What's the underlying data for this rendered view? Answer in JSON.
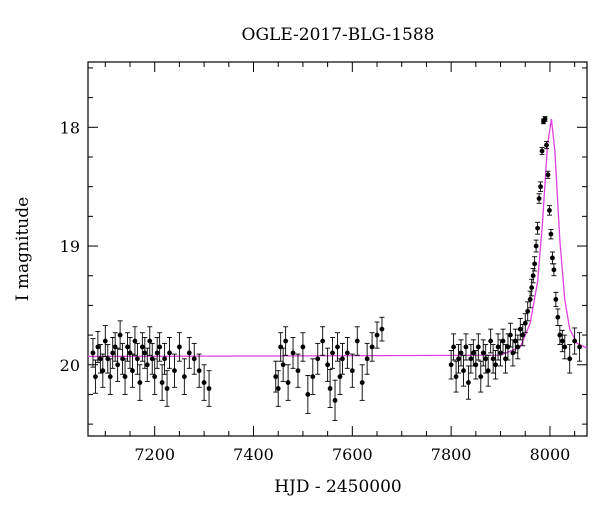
{
  "chart_data": {
    "type": "scatter",
    "title": "OGLE-2017-BLG-1588",
    "xlabel": "HJD - 2450000",
    "ylabel": "I magnitude",
    "xlim": [
      7065,
      8075
    ],
    "ylim": [
      20.6,
      17.45
    ],
    "y_inverted": true,
    "x_ticks": [
      7200,
      7400,
      7600,
      7800,
      8000
    ],
    "y_ticks": [
      18,
      19,
      20
    ],
    "grid": false,
    "model_color": "#e040e0",
    "point_color": "#000000",
    "series": [
      {
        "kind": "data_with_errors",
        "x": [
          7075,
          7080,
          7085,
          7090,
          7095,
          7100,
          7105,
          7110,
          7115,
          7120,
          7125,
          7130,
          7135,
          7140,
          7145,
          7150,
          7155,
          7160,
          7165,
          7170,
          7175,
          7180,
          7185,
          7190,
          7195,
          7200,
          7205,
          7210,
          7215,
          7220,
          7225,
          7230,
          7240,
          7250,
          7260,
          7270,
          7280,
          7290,
          7300,
          7310,
          7445,
          7450,
          7455,
          7460,
          7465,
          7470,
          7480,
          7490,
          7500,
          7510,
          7520,
          7530,
          7540,
          7550,
          7555,
          7560,
          7565,
          7570,
          7575,
          7580,
          7590,
          7600,
          7610,
          7620,
          7630,
          7640,
          7650,
          7660,
          7800,
          7805,
          7810,
          7815,
          7820,
          7825,
          7830,
          7835,
          7840,
          7845,
          7850,
          7855,
          7860,
          7865,
          7870,
          7875,
          7880,
          7885,
          7890,
          7895,
          7900,
          7905,
          7910,
          7915,
          7920,
          7925,
          7930,
          7935,
          7940,
          7945,
          7950,
          7955,
          7960,
          7963,
          7966,
          7969,
          7972,
          7975,
          7978,
          7981,
          7984,
          7987,
          7990,
          7993,
          7996,
          7999,
          8002,
          8005,
          8008,
          8012,
          8016,
          8020,
          8025,
          8030,
          8040,
          8050,
          8060
        ],
        "y": [
          19.9,
          20.1,
          19.85,
          19.95,
          20.05,
          19.8,
          19.95,
          20.1,
          19.9,
          19.85,
          20.0,
          19.75,
          19.95,
          20.1,
          19.85,
          19.9,
          20.05,
          19.8,
          19.95,
          20.15,
          19.85,
          19.9,
          20.0,
          19.8,
          19.95,
          20.1,
          19.9,
          19.85,
          20.15,
          19.95,
          20.2,
          19.9,
          20.05,
          19.85,
          20.1,
          19.9,
          19.95,
          20.05,
          20.15,
          20.2,
          20.1,
          20.2,
          19.85,
          20.0,
          19.8,
          20.15,
          19.9,
          20.05,
          19.85,
          20.25,
          20.1,
          19.95,
          19.8,
          20.0,
          20.2,
          19.9,
          20.3,
          19.85,
          20.1,
          19.95,
          19.9,
          20.05,
          19.8,
          20.15,
          19.95,
          19.85,
          19.75,
          19.7,
          20.0,
          19.85,
          20.1,
          19.95,
          19.9,
          20.05,
          19.85,
          20.15,
          19.95,
          19.9,
          20.0,
          19.85,
          20.1,
          19.9,
          19.95,
          20.05,
          19.8,
          19.95,
          20.0,
          19.85,
          19.9,
          19.8,
          19.95,
          19.85,
          19.75,
          19.9,
          19.8,
          19.85,
          19.7,
          19.75,
          19.65,
          19.55,
          19.45,
          19.35,
          19.25,
          19.15,
          19.0,
          18.85,
          18.6,
          18.5,
          18.2,
          17.95,
          17.93,
          18.15,
          18.4,
          18.7,
          18.9,
          19.1,
          19.2,
          19.45,
          19.6,
          19.75,
          19.8,
          19.85,
          19.95,
          19.8,
          19.85
        ],
        "err": [
          0.12,
          0.14,
          0.13,
          0.12,
          0.14,
          0.13,
          0.12,
          0.15,
          0.13,
          0.12,
          0.14,
          0.12,
          0.13,
          0.15,
          0.12,
          0.13,
          0.14,
          0.12,
          0.13,
          0.15,
          0.12,
          0.13,
          0.14,
          0.12,
          0.13,
          0.15,
          0.13,
          0.12,
          0.15,
          0.13,
          0.15,
          0.13,
          0.14,
          0.12,
          0.15,
          0.13,
          0.13,
          0.14,
          0.15,
          0.15,
          0.13,
          0.15,
          0.12,
          0.14,
          0.12,
          0.15,
          0.13,
          0.14,
          0.12,
          0.16,
          0.15,
          0.13,
          0.12,
          0.14,
          0.16,
          0.13,
          0.17,
          0.12,
          0.15,
          0.13,
          0.13,
          0.14,
          0.12,
          0.15,
          0.13,
          0.12,
          0.11,
          0.1,
          0.12,
          0.11,
          0.13,
          0.12,
          0.11,
          0.13,
          0.11,
          0.14,
          0.12,
          0.11,
          0.12,
          0.11,
          0.13,
          0.11,
          0.12,
          0.13,
          0.1,
          0.12,
          0.12,
          0.11,
          0.11,
          0.1,
          0.12,
          0.11,
          0.1,
          0.11,
          0.1,
          0.1,
          0.09,
          0.09,
          0.08,
          0.08,
          0.07,
          0.07,
          0.06,
          0.06,
          0.05,
          0.05,
          0.04,
          0.04,
          0.03,
          0.02,
          0.02,
          0.03,
          0.03,
          0.04,
          0.04,
          0.05,
          0.05,
          0.06,
          0.07,
          0.08,
          0.09,
          0.1,
          0.12,
          0.11,
          0.12
        ]
      },
      {
        "kind": "model_line",
        "x": [
          7065,
          7900,
          7940,
          7960,
          7975,
          7985,
          7995,
          8003,
          8010,
          8020,
          8030,
          8040,
          8055,
          8075
        ],
        "y": [
          19.93,
          19.92,
          19.85,
          19.65,
          19.3,
          18.8,
          18.15,
          17.93,
          18.2,
          18.95,
          19.45,
          19.7,
          19.82,
          19.86
        ]
      }
    ]
  }
}
